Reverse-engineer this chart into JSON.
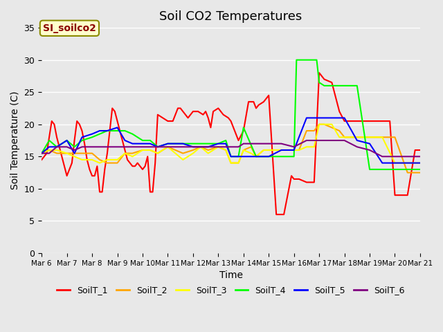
{
  "title": "Soil CO2 Temperatures",
  "xlabel": "Time",
  "ylabel": "Soil Temperature (C)",
  "ylim": [
    0,
    35
  ],
  "background_color": "#e8e8e8",
  "plot_bg_color": "#e8e8e8",
  "annotation_text": "SI_soilco2",
  "annotation_bg": "#ffffcc",
  "annotation_fg": "#8b0000",
  "legend_entries": [
    "SoilT_1",
    "SoilT_2",
    "SoilT_3",
    "SoilT_4",
    "SoilT_5",
    "SoilT_6"
  ],
  "line_colors": [
    "red",
    "orange",
    "yellow",
    "lime",
    "blue",
    "purple"
  ],
  "xtick_labels": [
    "Mar 6",
    "Mar 7",
    "Mar 8",
    "Mar 9",
    "Mar 10",
    "Mar 11",
    "Mar 12",
    "Mar 13",
    "Mar 14",
    "Mar 15",
    "Mar 16",
    "Mar 17",
    "Mar 18",
    "Mar 19",
    "Mar 20",
    "Mar 21"
  ],
  "SoilT_1": {
    "x": [
      6,
      6.2,
      6.4,
      6.5,
      6.6,
      6.8,
      7.0,
      7.1,
      7.2,
      7.3,
      7.4,
      7.5,
      7.6,
      7.7,
      7.8,
      7.9,
      8.0,
      8.1,
      8.2,
      8.3,
      8.4,
      8.5,
      8.6,
      8.7,
      8.8,
      8.9,
      9.0,
      9.1,
      9.2,
      9.3,
      9.4,
      9.5,
      9.6,
      9.7,
      9.8,
      9.9,
      10.0,
      10.1,
      10.2,
      10.3,
      10.4,
      10.5,
      10.6,
      10.8,
      11.0,
      11.2,
      11.4,
      11.5,
      11.6,
      11.8,
      12.0,
      12.2,
      12.4,
      12.5,
      12.6,
      12.7,
      12.8,
      13.0,
      13.2,
      13.4,
      13.5,
      13.6,
      13.8,
      14.0,
      14.2,
      14.4,
      14.5,
      14.6,
      14.8,
      15.0,
      15.3,
      15.6,
      15.9,
      16.0,
      16.2,
      16.5,
      16.8,
      17.0,
      17.2,
      17.5,
      17.8,
      18.0,
      18.2,
      18.5,
      18.8,
      19.0,
      19.2,
      19.5,
      19.8,
      20.0,
      20.2,
      20.5,
      20.8,
      21.0
    ],
    "y": [
      14.5,
      15.5,
      20.5,
      20.0,
      18.0,
      15.0,
      12.0,
      13.0,
      14.0,
      17.5,
      20.5,
      20.0,
      19.0,
      17.0,
      14.5,
      13.0,
      12.0,
      12.0,
      13.5,
      9.5,
      9.5,
      13.0,
      15.5,
      19.0,
      22.5,
      22.0,
      20.5,
      19.0,
      17.5,
      16.0,
      14.5,
      14.0,
      13.5,
      13.5,
      14.0,
      13.5,
      13.0,
      13.5,
      15.0,
      9.5,
      9.5,
      14.0,
      21.5,
      21.0,
      20.5,
      20.5,
      22.5,
      22.5,
      22.0,
      21.0,
      22.0,
      22.0,
      21.5,
      22.0,
      21.0,
      19.5,
      22.0,
      22.5,
      21.5,
      21.0,
      20.5,
      19.5,
      17.5,
      19.0,
      23.5,
      23.5,
      22.5,
      23.0,
      23.5,
      24.5,
      6.0,
      6.0,
      12.0,
      11.5,
      11.5,
      11.0,
      11.0,
      28.0,
      27.0,
      26.5,
      22.0,
      20.5,
      20.5,
      20.5,
      20.5,
      20.5,
      20.5,
      20.5,
      20.5,
      9.0,
      9.0,
      9.0,
      16.0,
      16.0
    ]
  },
  "SoilT_2": {
    "x": [
      6,
      6.3,
      6.6,
      7.0,
      7.3,
      7.6,
      8.0,
      8.3,
      8.6,
      9.0,
      9.3,
      9.6,
      10.0,
      10.3,
      10.6,
      11.0,
      11.3,
      11.6,
      12.0,
      12.3,
      12.6,
      13.0,
      13.3,
      13.5,
      13.8,
      14.0,
      14.3,
      14.5,
      14.8,
      15.0,
      15.3,
      15.6,
      15.9,
      16.0,
      16.2,
      16.5,
      16.8,
      17.0,
      17.2,
      17.5,
      17.8,
      18.0,
      18.5,
      19.0,
      19.5,
      20.0,
      20.5,
      21.0
    ],
    "y": [
      15.5,
      16.0,
      15.5,
      15.5,
      15.5,
      15.5,
      15.5,
      14.5,
      14.0,
      14.0,
      15.5,
      15.5,
      16.0,
      16.0,
      15.5,
      16.5,
      16.0,
      15.5,
      16.0,
      16.5,
      16.0,
      16.5,
      16.0,
      14.0,
      14.0,
      16.0,
      16.5,
      15.0,
      16.0,
      16.0,
      16.0,
      16.0,
      16.0,
      16.0,
      16.0,
      19.0,
      19.0,
      20.0,
      20.0,
      19.5,
      19.0,
      18.0,
      18.0,
      18.0,
      18.0,
      18.0,
      12.5,
      12.5
    ]
  },
  "SoilT_3": {
    "x": [
      6,
      6.3,
      6.6,
      7.0,
      7.3,
      7.6,
      8.0,
      8.3,
      8.6,
      9.0,
      9.3,
      9.6,
      10.0,
      10.3,
      10.6,
      11.0,
      11.3,
      11.6,
      12.0,
      12.3,
      12.6,
      13.0,
      13.3,
      13.5,
      13.8,
      14.0,
      14.3,
      14.5,
      14.8,
      15.0,
      15.3,
      15.6,
      15.9,
      16.0,
      16.2,
      16.5,
      16.8,
      17.0,
      17.2,
      17.5,
      17.8,
      18.0,
      18.5,
      19.0,
      19.5,
      20.0,
      20.5,
      21.0
    ],
    "y": [
      15.5,
      16.0,
      16.0,
      15.5,
      15.0,
      14.5,
      14.5,
      14.0,
      14.5,
      14.5,
      15.5,
      15.0,
      16.0,
      16.0,
      15.5,
      16.5,
      15.5,
      14.5,
      15.5,
      16.5,
      15.5,
      16.5,
      16.0,
      14.0,
      14.0,
      16.0,
      15.5,
      15.0,
      16.0,
      16.0,
      16.0,
      16.0,
      16.0,
      16.0,
      16.0,
      16.5,
      16.5,
      20.0,
      20.0,
      20.0,
      18.0,
      18.0,
      18.0,
      18.0,
      18.0,
      14.0,
      14.0,
      14.0
    ]
  },
  "SoilT_4": {
    "x": [
      6,
      6.3,
      6.6,
      7.0,
      7.3,
      7.6,
      8.0,
      8.3,
      8.6,
      9.0,
      9.3,
      9.6,
      10.0,
      10.3,
      10.6,
      11.0,
      11.3,
      11.6,
      12.0,
      12.3,
      12.6,
      13.0,
      13.3,
      13.5,
      13.8,
      14.0,
      14.5,
      15.0,
      15.5,
      16.0,
      16.1,
      16.5,
      16.9,
      17.0,
      17.2,
      17.5,
      17.8,
      18.0,
      18.5,
      19.0,
      19.5,
      20.0,
      20.5,
      21.0
    ],
    "y": [
      15.5,
      17.5,
      16.5,
      17.5,
      16.5,
      17.5,
      18.0,
      18.5,
      19.0,
      19.0,
      19.0,
      18.5,
      17.5,
      17.5,
      16.5,
      17.0,
      17.0,
      17.0,
      17.0,
      17.0,
      17.0,
      17.0,
      17.5,
      15.0,
      15.0,
      19.5,
      15.0,
      15.0,
      15.0,
      15.0,
      30.0,
      30.0,
      30.0,
      26.5,
      26.0,
      26.0,
      26.0,
      26.0,
      26.0,
      13.0,
      13.0,
      13.0,
      13.0,
      13.0
    ]
  },
  "SoilT_5": {
    "x": [
      6,
      6.3,
      6.6,
      7.0,
      7.3,
      7.6,
      8.0,
      8.3,
      8.6,
      9.0,
      9.3,
      9.6,
      10.0,
      10.3,
      10.6,
      11.0,
      11.3,
      11.6,
      12.0,
      12.3,
      12.6,
      13.0,
      13.3,
      13.5,
      13.8,
      14.0,
      14.5,
      15.0,
      15.5,
      16.0,
      16.5,
      17.0,
      17.5,
      18.0,
      18.5,
      19.0,
      19.5,
      20.0,
      20.5,
      21.0
    ],
    "y": [
      15.5,
      16.5,
      16.5,
      17.5,
      15.5,
      18.0,
      18.5,
      19.0,
      19.0,
      19.5,
      17.5,
      17.0,
      17.0,
      17.0,
      16.5,
      17.0,
      17.0,
      17.0,
      16.5,
      16.5,
      16.5,
      17.0,
      17.0,
      15.0,
      15.0,
      15.0,
      15.0,
      15.0,
      16.0,
      16.0,
      21.0,
      21.0,
      21.0,
      21.0,
      17.5,
      17.0,
      14.0,
      14.0,
      14.0,
      14.0
    ]
  },
  "SoilT_6": {
    "x": [
      6,
      6.3,
      6.6,
      7.0,
      7.3,
      7.6,
      8.0,
      8.3,
      8.6,
      9.0,
      9.3,
      9.6,
      10.0,
      10.3,
      10.6,
      11.0,
      11.3,
      11.6,
      12.0,
      12.3,
      12.6,
      13.0,
      13.3,
      13.5,
      13.8,
      14.0,
      14.5,
      15.0,
      15.5,
      16.0,
      16.5,
      17.0,
      17.5,
      18.0,
      18.5,
      19.0,
      19.5,
      20.0,
      20.5,
      21.0
    ],
    "y": [
      15.5,
      15.5,
      16.5,
      16.5,
      16.0,
      16.5,
      16.5,
      16.5,
      16.5,
      16.5,
      16.5,
      16.5,
      16.5,
      16.5,
      16.5,
      16.5,
      16.5,
      16.5,
      16.5,
      16.5,
      16.5,
      16.5,
      16.5,
      16.5,
      16.5,
      17.0,
      17.0,
      17.0,
      17.0,
      16.5,
      17.5,
      17.5,
      17.5,
      17.5,
      16.5,
      16.0,
      15.0,
      15.0,
      15.0,
      15.0
    ]
  }
}
